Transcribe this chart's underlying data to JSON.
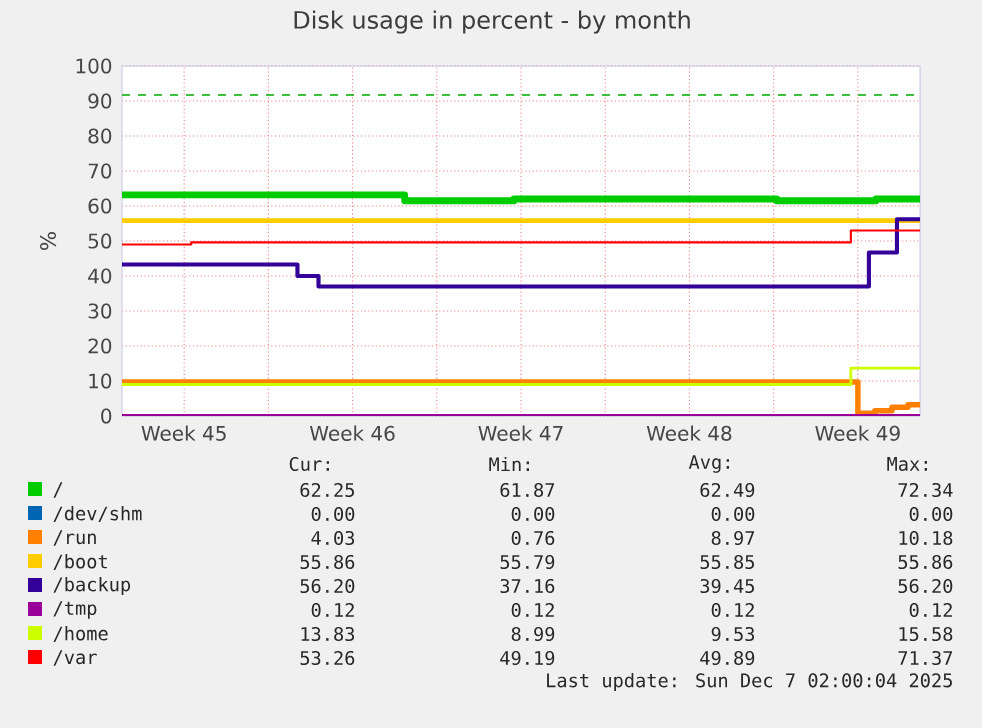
{
  "chart_data": {
    "type": "step",
    "title": "Disk usage in percent - by month",
    "ylabel": "%",
    "xlim": [
      "2025-11-03T22:00",
      "2025-12-07T02:00"
    ],
    "xticks": [
      {
        "value": "2025-11-06T12:00",
        "label": "Week 45"
      },
      {
        "value": "2025-11-10",
        "label": null
      },
      {
        "value": "2025-11-13T12:00",
        "label": "Week 46"
      },
      {
        "value": "2025-11-17",
        "label": null
      },
      {
        "value": "2025-11-20T12:00",
        "label": "Week 47"
      },
      {
        "value": "2025-11-24",
        "label": null
      },
      {
        "value": "2025-11-27T12:00",
        "label": "Week 48"
      },
      {
        "value": "2025-12-01",
        "label": null
      },
      {
        "value": "2025-12-04T12:00",
        "label": "Week 49"
      }
    ],
    "ylim": [
      0,
      100
    ],
    "yticks": [
      0,
      10,
      20,
      30,
      40,
      50,
      60,
      70,
      80,
      90,
      100
    ],
    "grid": true,
    "legend": "bottom",
    "series": [
      {
        "name": "/",
        "color": "#00cc00",
        "x": [
          "2025-11-03T22:00",
          "2025-11-15T16:00",
          "2025-11-20T05:00",
          "2025-12-01T03:00",
          "2025-12-05T06:00",
          "2025-12-07T02:00"
        ],
        "values": [
          63.2,
          61.5,
          62,
          61.5,
          62,
          62
        ]
      },
      {
        "name": "/dev/shm",
        "color": "#0066b3",
        "values": [
          null,
          null
        ]
      },
      {
        "name": "/run",
        "color": "#ff8000",
        "x": [
          "2025-11-03T22:00",
          "2025-12-04T05:00",
          "2025-12-04T12:00",
          "2025-12-05T05:00",
          "2025-12-05T22:00",
          "2025-12-06T14:00",
          "2025-12-07T02:00"
        ],
        "values": [
          9.7,
          9.7,
          0.8,
          1.5,
          2.5,
          3.2,
          4
        ]
      },
      {
        "name": "/boot",
        "color": "#ffcc00",
        "x": [
          "2025-11-03T22:00",
          "2025-12-07T02:00"
        ],
        "values": [
          55.8,
          55.8
        ]
      },
      {
        "name": "/backup",
        "color": "#330099",
        "x": [
          "2025-11-03T22:00",
          "2025-11-11T05:00",
          "2025-11-12T02:00",
          "2025-12-04T23:00",
          "2025-12-06T03:00",
          "2025-12-07T02:00"
        ],
        "values": [
          43.3,
          40,
          37,
          46.7,
          56.2,
          56.2
        ]
      },
      {
        "name": "/tmp",
        "color": "#990099",
        "x": [
          "2025-11-03T22:00",
          "2025-12-07T02:00"
        ],
        "values": [
          0.1,
          0.1
        ]
      },
      {
        "name": "/home",
        "color": "#ccff00",
        "x": [
          "2025-11-03T22:00",
          "2025-12-04T05:00",
          "2025-12-07T02:00"
        ],
        "values": [
          9,
          13.7,
          13.7
        ]
      },
      {
        "name": "/var",
        "color": "#ff0000",
        "x": [
          "2025-11-03T22:00",
          "2025-11-06T19:00",
          "2025-12-04T05:00",
          "2025-12-07T02:00"
        ],
        "values": [
          49,
          49.6,
          53,
          53
        ]
      }
    ],
    "ref_lines": [
      {
        "axis": "y",
        "value": 91.7,
        "color": "#00aa00",
        "line_style": "dashed"
      }
    ],
    "annotations": [
      "Cur:",
      "Min:",
      "Avg:",
      "Max:",
      "62.25",
      "61.87",
      "62.49",
      "72.34",
      "0.00",
      "0.00",
      "0.00",
      "0.00",
      "4.03",
      "0.76",
      "8.97",
      "10.18",
      "55.86",
      "55.79",
      "55.85",
      "55.86",
      "56.20",
      "37.16",
      "39.45",
      "56.20",
      "0.12",
      "0.12",
      "0.12",
      "0.12",
      "13.83",
      "8.99",
      "9.53",
      "15.58",
      "53.26",
      "49.19",
      "49.89",
      "71.37",
      "Last update: Sun Dec  7 02:00:04 2025"
    ]
  }
}
